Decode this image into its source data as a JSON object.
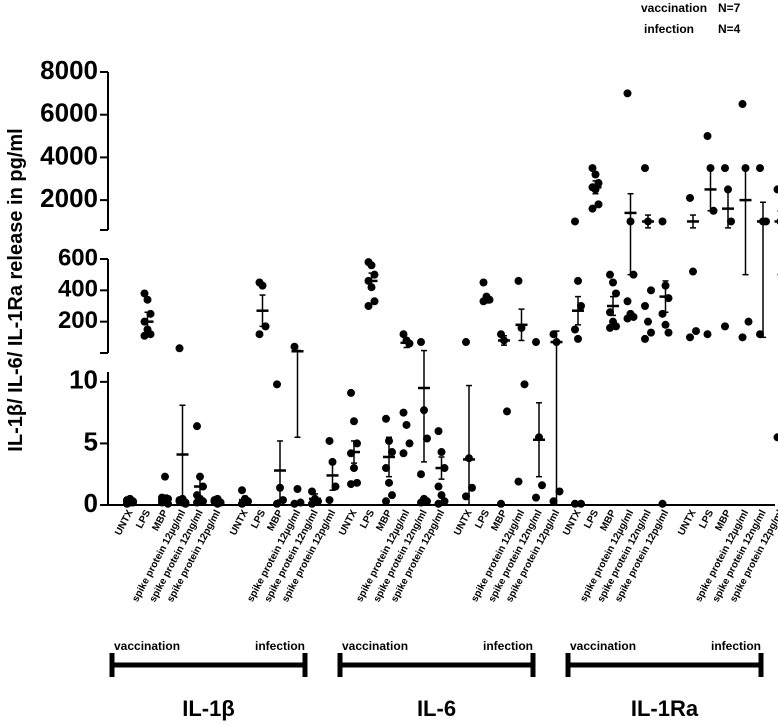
{
  "chart_data": {
    "type": "scatter",
    "y_label": "IL-1β/ IL-6/ IL-1Ra release in pg/ml",
    "legend": [
      {
        "name": "vaccination",
        "n": "N=7"
      },
      {
        "name": "infection",
        "n": "N=4"
      }
    ],
    "categories": [
      "UNTX",
      "LPS",
      "MBP",
      "spike protein 12µg/ml",
      "spike protein 12ng/ml",
      "spike protein 12pg/ml"
    ],
    "segments": [
      {
        "ylim": [
          0,
          10.8
        ],
        "yticks": [
          0,
          5,
          10
        ]
      },
      {
        "ylim": [
          0,
          600
        ],
        "yticks": [
          200,
          400,
          600
        ]
      },
      {
        "ylim": [
          600,
          8000
        ],
        "yticks": [
          2000,
          4000,
          6000,
          8000
        ]
      }
    ],
    "panels": [
      {
        "name": "IL-1β",
        "conditions": [
          {
            "name": "vaccination",
            "points": [
              [
                0.1,
                0.2,
                0.3,
                0.4,
                0.5,
                0.2,
                0.3
              ],
              [
                380,
                340,
                250,
                200,
                150,
                120,
                110
              ],
              [
                0.2,
                0.3,
                0.5,
                0.6,
                2.3,
                0.1,
                0.4
              ],
              [
                30,
                0.2,
                0.1,
                0.3,
                0.5,
                0.2,
                0.4
              ],
              [
                6.4,
                2.3,
                1.5,
                0.8,
                0.5,
                0.3,
                0.2
              ],
              [
                0.3,
                0.1,
                0.2,
                0.4,
                0.5,
                0.2,
                0.3
              ]
            ],
            "mean": [
              0.3,
              200,
              0.5,
              4.1,
              1.5,
              0.3
            ],
            "sd": [
              0.1,
              60,
              0.3,
              4,
              0.8,
              0.1
            ]
          },
          {
            "name": "infection",
            "points": [
              [
                1.2,
                0.5,
                0.3,
                0.1
              ],
              [
                450,
                430,
                170,
                120
              ],
              [
                9.8,
                1.4,
                0.4,
                0.1
              ],
              [
                40,
                1.3,
                0.2,
                0.1
              ],
              [
                1.1,
                0.5,
                0.3,
                0.1
              ],
              [
                5.2,
                3.5,
                1.5,
                0.4
              ]
            ],
            "mean": [
              0.4,
              270,
              2.8,
              11,
              0.5,
              2.4
            ],
            "sd": [
              0.3,
              100,
              2.4,
              5.5,
              0.4,
              1.2
            ]
          }
        ]
      },
      {
        "name": "IL-6",
        "conditions": [
          {
            "name": "vaccination",
            "points": [
              [
                9.1,
                6.8,
                5.0,
                4.2,
                3.0,
                1.8,
                1.7
              ],
              [
                580,
                560,
                500,
                460,
                420,
                330,
                300
              ],
              [
                7.0,
                5.2,
                4.3,
                3.0,
                1.8,
                0.8,
                0.3
              ],
              [
                120,
                80,
                60,
                7.5,
                6.5,
                5.0,
                4.2
              ],
              [
                70,
                7.7,
                5.4,
                2.5,
                0.5,
                0.3,
                0.2
              ],
              [
                6.0,
                4.3,
                3.0,
                1.5,
                0.8,
                0.3,
                0.1
              ]
            ],
            "mean": [
              4.3,
              460,
              3.9,
              65,
              9.5,
              3.0
            ],
            "sd": [
              0.9,
              50,
              1.6,
              30,
              6,
              0.9
            ]
          },
          {
            "name": "infection",
            "points": [
              [
                70,
                3.8,
                1.4,
                0.7
              ],
              [
                450,
                360,
                340,
                330
              ],
              [
                120,
                80,
                7.6,
                0.1
              ],
              [
                460,
                160,
                9.8,
                1.9
              ],
              [
                70,
                5.5,
                1.6,
                0.6
              ],
              [
                120,
                70,
                1.1,
                0.3
              ]
            ],
            "mean": [
              3.7,
              340,
              80,
              180,
              5.3,
              70
            ],
            "sd": [
              6,
              20,
              30,
              100,
              3,
              70
            ]
          }
        ]
      },
      {
        "name": "IL-1Ra",
        "conditions": [
          {
            "name": "vaccination",
            "points": [
              [
                1000,
                460,
                300,
                150,
                90,
                0.1,
                0.1
              ],
              [
                3500,
                3200,
                2800,
                2600,
                2500,
                1800,
                1600
              ],
              [
                500,
                450,
                380,
                260,
                200,
                170,
                160
              ],
              [
                7000,
                1000,
                500,
                330,
                250,
                230,
                220
              ],
              [
                3500,
                1000,
                400,
                300,
                200,
                130,
                90
              ],
              [
                1000,
                430,
                350,
                250,
                180,
                130,
                0.1
              ]
            ],
            "mean": [
              270,
              2600,
              300,
              1400,
              1000,
              360
            ],
            "sd": [
              90,
              300,
              60,
              900,
              300,
              100
            ]
          },
          {
            "name": "infection",
            "points": [
              [
                2100,
                520,
                140,
                100
              ],
              [
                5000,
                3500,
                1500,
                120
              ],
              [
                3500,
                2500,
                1000,
                170
              ],
              [
                6500,
                3500,
                200,
                100
              ],
              [
                3500,
                1000,
                1000,
                120
              ],
              [
                2500,
                1000,
                120,
                5.5
              ]
            ],
            "mean": [
              1000,
              2500,
              1600,
              2000,
              1000,
              1000
            ],
            "sd": [
              300,
              1000,
              900,
              1500,
              900,
              500
            ]
          }
        ]
      }
    ]
  }
}
